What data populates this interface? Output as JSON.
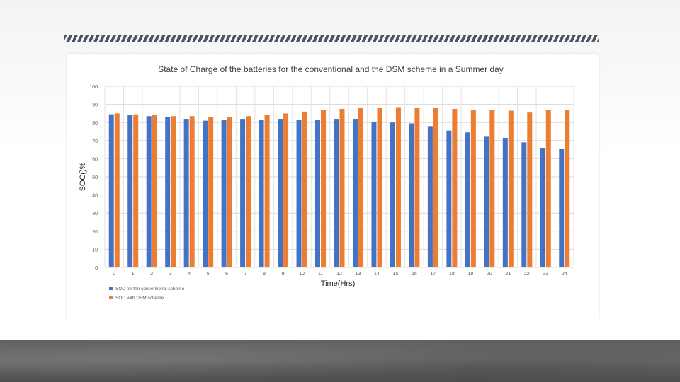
{
  "chart_data": {
    "type": "bar",
    "title": "State of Charge of the batteries for the conventional and the DSM scheme in a Summer day",
    "xlabel": "Time(Hrs)",
    "ylabel": "SOC()%",
    "ylim": [
      0,
      100
    ],
    "yticks": [
      "0",
      "10",
      "20",
      "30",
      "40",
      "50",
      "60",
      "70",
      "80",
      "90",
      "100"
    ],
    "categories": [
      "0",
      "1",
      "2",
      "3",
      "4",
      "5",
      "6",
      "7",
      "8",
      "9",
      "10",
      "11",
      "12",
      "13",
      "14",
      "15",
      "16",
      "17",
      "18",
      "19",
      "20",
      "21",
      "22",
      "23",
      "24"
    ],
    "series": [
      {
        "name": "SOC for the conventional scheme",
        "color": "#4472C4",
        "values": [
          84.5,
          84,
          83.5,
          83,
          82,
          81,
          81.5,
          82,
          81.5,
          82,
          81.5,
          81.5,
          82,
          82,
          80.5,
          80,
          79.5,
          78,
          75.5,
          74.5,
          72.5,
          71.5,
          69,
          66,
          65.5
        ]
      },
      {
        "name": "SOC with DSM scheme",
        "color": "#ED7D31",
        "values": [
          85,
          84.5,
          84,
          83.5,
          83.5,
          83,
          83,
          83.5,
          84,
          85,
          86,
          87,
          87.5,
          88,
          88,
          88.5,
          88,
          88,
          87.5,
          87,
          87,
          86.5,
          85.5,
          87,
          87
        ]
      }
    ],
    "legend": "bottom-left",
    "grid": true
  }
}
